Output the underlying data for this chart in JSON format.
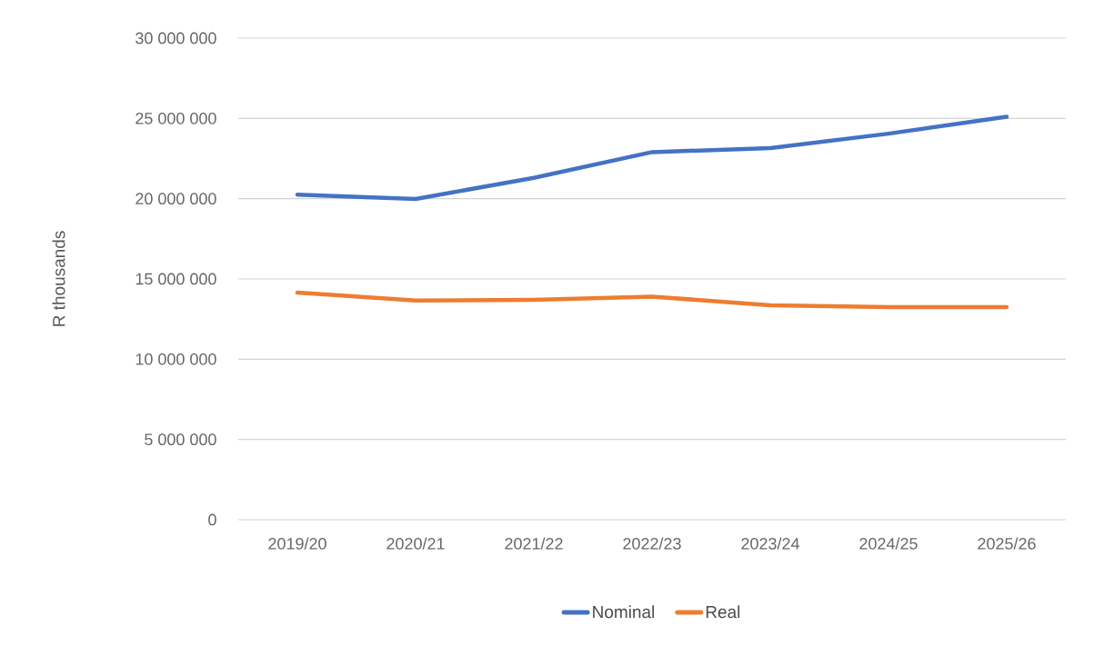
{
  "chart_data": {
    "type": "line",
    "ylabel": "R thousands",
    "categories": [
      "2019/20",
      "2020/21",
      "2021/22",
      "2022/23",
      "2023/24",
      "2024/25",
      "2025/26"
    ],
    "series": [
      {
        "name": "Nominal",
        "color": "#4472c4",
        "values": [
          20250000,
          19980000,
          21300000,
          22900000,
          23150000,
          24050000,
          25100000
        ]
      },
      {
        "name": "Real",
        "color": "#ed7d31",
        "values": [
          14150000,
          13650000,
          13700000,
          13900000,
          13360000,
          13250000,
          13250000
        ]
      }
    ],
    "ylim": [
      0,
      30000000
    ],
    "yticks": [
      {
        "value": 0,
        "label": "0"
      },
      {
        "value": 5000000,
        "label": "5 000 000"
      },
      {
        "value": 10000000,
        "label": "10 000 000"
      },
      {
        "value": 15000000,
        "label": "15 000 000"
      },
      {
        "value": 20000000,
        "label": "20 000 000"
      },
      {
        "value": 25000000,
        "label": "25 000 000"
      },
      {
        "value": 30000000,
        "label": "30 000 000"
      }
    ],
    "grid": "y",
    "legend": "bottom",
    "marker": "none",
    "line_style": "solid"
  }
}
